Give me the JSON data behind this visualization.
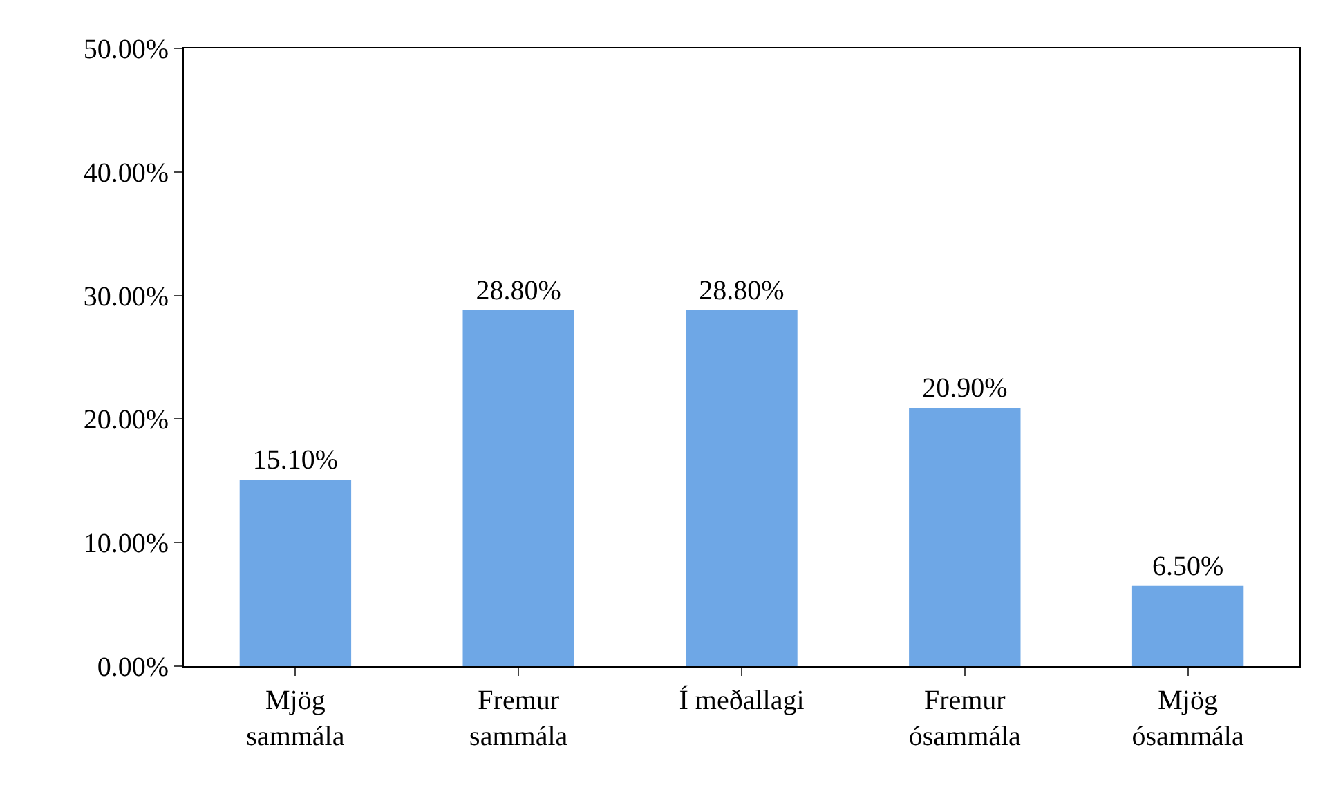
{
  "chart_data": {
    "type": "bar",
    "categories": [
      "Mjög\nsammála",
      "Fremur\nsammála",
      "Í meðallagi",
      "Fremur\nósammála",
      "Mjög\nósammála"
    ],
    "values": [
      15.1,
      28.8,
      28.8,
      20.9,
      6.5
    ],
    "value_labels": [
      "15.10%",
      "28.80%",
      "28.80%",
      "20.90%",
      "6.50%"
    ],
    "color": "#6ea7e6",
    "ylim": [
      0,
      50
    ],
    "yticks": [
      {
        "value": 0,
        "label": "0.00%"
      },
      {
        "value": 10,
        "label": "10.00%"
      },
      {
        "value": 20,
        "label": "20.00%"
      },
      {
        "value": 30,
        "label": "30.00%"
      },
      {
        "value": 40,
        "label": "40.00%"
      },
      {
        "value": 50,
        "label": "50.00%"
      }
    ],
    "grid": false
  }
}
